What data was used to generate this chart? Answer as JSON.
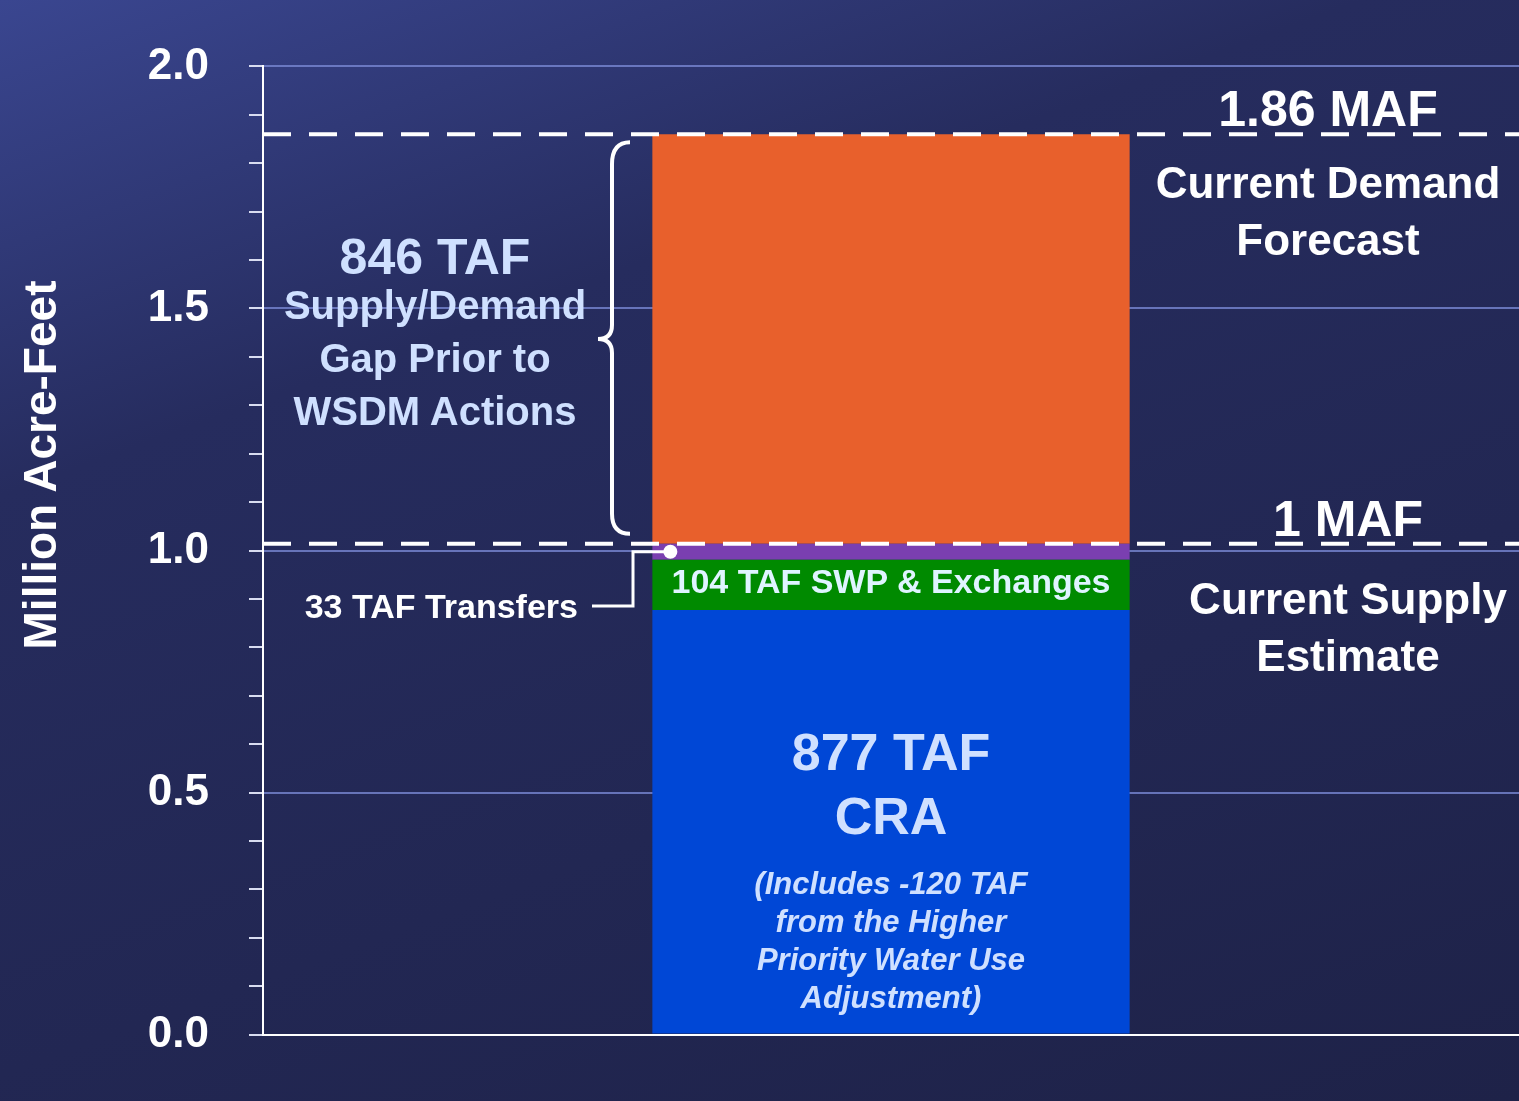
{
  "chart_data": {
    "type": "bar",
    "stacked": true,
    "ylabel": "Million Acre-Feet",
    "categories": [
      null
    ],
    "series": [
      {
        "color": "#0047d6",
        "values": [
          0.877
        ]
      },
      {
        "color": "#008a00",
        "values": [
          0.104
        ]
      },
      {
        "color": "#7a3fb0",
        "values": [
          0.033
        ]
      },
      {
        "color": "#e8602c",
        "values": [
          0.846
        ]
      }
    ],
    "ylim": [
      0,
      2
    ],
    "yticks": [
      {
        "value": 0,
        "label": "0.0"
      },
      {
        "value": 0.1,
        "label": null
      },
      {
        "value": 0.2,
        "label": null
      },
      {
        "value": 0.3,
        "label": null
      },
      {
        "value": 0.4,
        "label": null
      },
      {
        "value": 0.5,
        "label": "0.5"
      },
      {
        "value": 0.6,
        "label": null
      },
      {
        "value": 0.7,
        "label": null
      },
      {
        "value": 0.8,
        "label": null
      },
      {
        "value": 0.9,
        "label": null
      },
      {
        "value": 1,
        "label": "1.0"
      },
      {
        "value": 1.1,
        "label": null
      },
      {
        "value": 1.2,
        "label": null
      },
      {
        "value": 1.3,
        "label": null
      },
      {
        "value": 1.4,
        "label": null
      },
      {
        "value": 1.5,
        "label": "1.5"
      },
      {
        "value": 1.6,
        "label": null
      },
      {
        "value": 1.7,
        "label": null
      },
      {
        "value": 1.8,
        "label": null
      },
      {
        "value": 1.9,
        "label": null
      },
      {
        "value": 2,
        "label": "2.0"
      }
    ],
    "grid": "y",
    "tick_labels": "y",
    "legend": false,
    "ref_lines": [
      {
        "axis": "y",
        "value": 1.86,
        "label": "1.86 MAF",
        "color": "#ffffff",
        "line_style": "dashed"
      },
      {
        "axis": "y",
        "value": 1.014,
        "label": "1 MAF",
        "color": "#ffffff",
        "line_style": "dashed"
      }
    ],
    "annotations": [
      "846 TAF\nSupply/Demand\nGap Prior to\nWSDM Actions",
      "33 TAF Transfers",
      "104 TAF SWP & Exchanges",
      "877 TAF\nCRA",
      "(Includes -120 TAF\nfrom the Higher\nPriority Water Use\nAdjustment)",
      "Current Demand\nForecast",
      "Current Supply\nEstimate"
    ]
  }
}
